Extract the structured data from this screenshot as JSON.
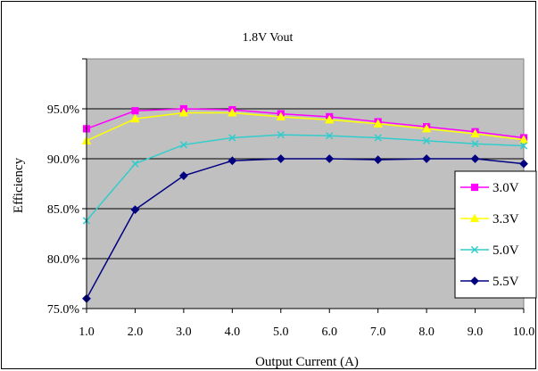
{
  "chart_data": {
    "type": "line",
    "title": "1.8V  Vout",
    "xlabel": "Output Current (A)",
    "ylabel": "Efficiency",
    "x": [
      1.0,
      2.0,
      3.0,
      4.0,
      5.0,
      6.0,
      7.0,
      8.0,
      9.0,
      10.0
    ],
    "x_tick_labels": [
      "1.0",
      "2.0",
      "3.0",
      "4.0",
      "5.0",
      "6.0",
      "7.0",
      "8.0",
      "9.0",
      "10.0"
    ],
    "xlim": [
      1.0,
      10.0
    ],
    "ylim": [
      75.0,
      100.0
    ],
    "y_ticks": [
      75.0,
      80.0,
      85.0,
      90.0,
      95.0
    ],
    "y_tick_labels": [
      "75.0%",
      "80.0%",
      "85.0%",
      "90.0%",
      "95.0%"
    ],
    "grid": "horizontal",
    "plot_background": "#c0c0c0",
    "legend_position": "right",
    "series": [
      {
        "name": "3.0V",
        "color": "#ff00ff",
        "marker": "square",
        "values": [
          93.0,
          94.8,
          95.0,
          94.9,
          94.5,
          94.2,
          93.7,
          93.2,
          92.7,
          92.1
        ]
      },
      {
        "name": "3.3V",
        "color": "#ffff00",
        "marker": "triangle",
        "values": [
          91.8,
          94.0,
          94.6,
          94.6,
          94.2,
          93.9,
          93.5,
          93.0,
          92.5,
          91.9
        ]
      },
      {
        "name": "5.0V",
        "color": "#33cccc",
        "marker": "x",
        "values": [
          83.8,
          89.5,
          91.4,
          92.1,
          92.4,
          92.3,
          92.1,
          91.8,
          91.5,
          91.3
        ]
      },
      {
        "name": "5.5V",
        "color": "#000080",
        "marker": "diamond",
        "values": [
          76.0,
          84.9,
          88.3,
          89.8,
          90.0,
          90.0,
          89.9,
          90.0,
          90.0,
          89.5
        ]
      }
    ]
  }
}
